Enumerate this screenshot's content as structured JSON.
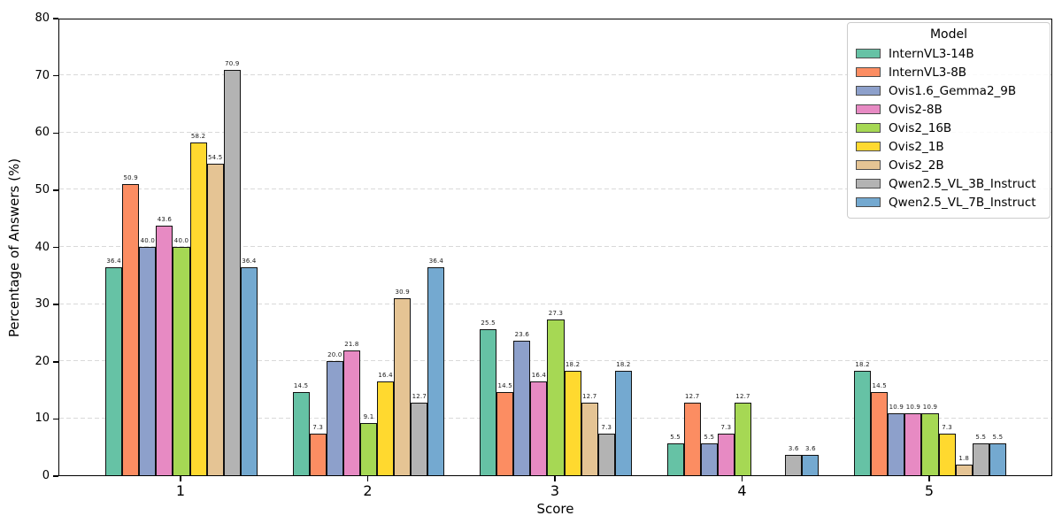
{
  "chart_data": {
    "type": "bar",
    "title": "",
    "xlabel": "Score",
    "ylabel": "Percentage of Answers (%)",
    "categories": [
      "1",
      "2",
      "3",
      "4",
      "5"
    ],
    "ylim": [
      0,
      80
    ],
    "yticks": [
      0,
      10,
      20,
      30,
      40,
      50,
      60,
      70,
      80
    ],
    "grid": "horizontal-dashed",
    "gridline_color": "#d9d9d9",
    "legend_title": "Model",
    "legend_position": "upper-right",
    "bar_label_decimals": 1,
    "series": [
      {
        "name": "InternVL3-14B",
        "color": "#66c2a5",
        "values": [
          36.4,
          14.5,
          25.5,
          5.5,
          18.2
        ]
      },
      {
        "name": "InternVL3-8B",
        "color": "#fc8d62",
        "values": [
          50.9,
          7.3,
          14.5,
          12.7,
          14.5
        ]
      },
      {
        "name": "Ovis1.6_Gemma2_9B",
        "color": "#8da0cb",
        "values": [
          40.0,
          20.0,
          23.6,
          5.5,
          10.9
        ]
      },
      {
        "name": "Ovis2-8B",
        "color": "#e78ac3",
        "values": [
          43.6,
          21.8,
          16.4,
          7.3,
          10.9
        ]
      },
      {
        "name": "Ovis2_16B",
        "color": "#a6d854",
        "values": [
          40.0,
          9.1,
          27.3,
          12.7,
          10.9
        ]
      },
      {
        "name": "Ovis2_1B",
        "color": "#ffd92f",
        "values": [
          58.2,
          16.4,
          18.2,
          0,
          7.3
        ]
      },
      {
        "name": "Ovis2_2B",
        "color": "#e5c494",
        "values": [
          54.5,
          30.9,
          12.7,
          0,
          1.8
        ]
      },
      {
        "name": "Qwen2.5_VL_3B_Instruct",
        "color": "#b3b3b3",
        "values": [
          70.9,
          12.7,
          7.3,
          3.6,
          5.5
        ]
      },
      {
        "name": "Qwen2.5_VL_7B_Instruct",
        "color": "#74a9d0",
        "values": [
          36.4,
          36.4,
          18.2,
          3.6,
          5.5
        ]
      }
    ]
  }
}
